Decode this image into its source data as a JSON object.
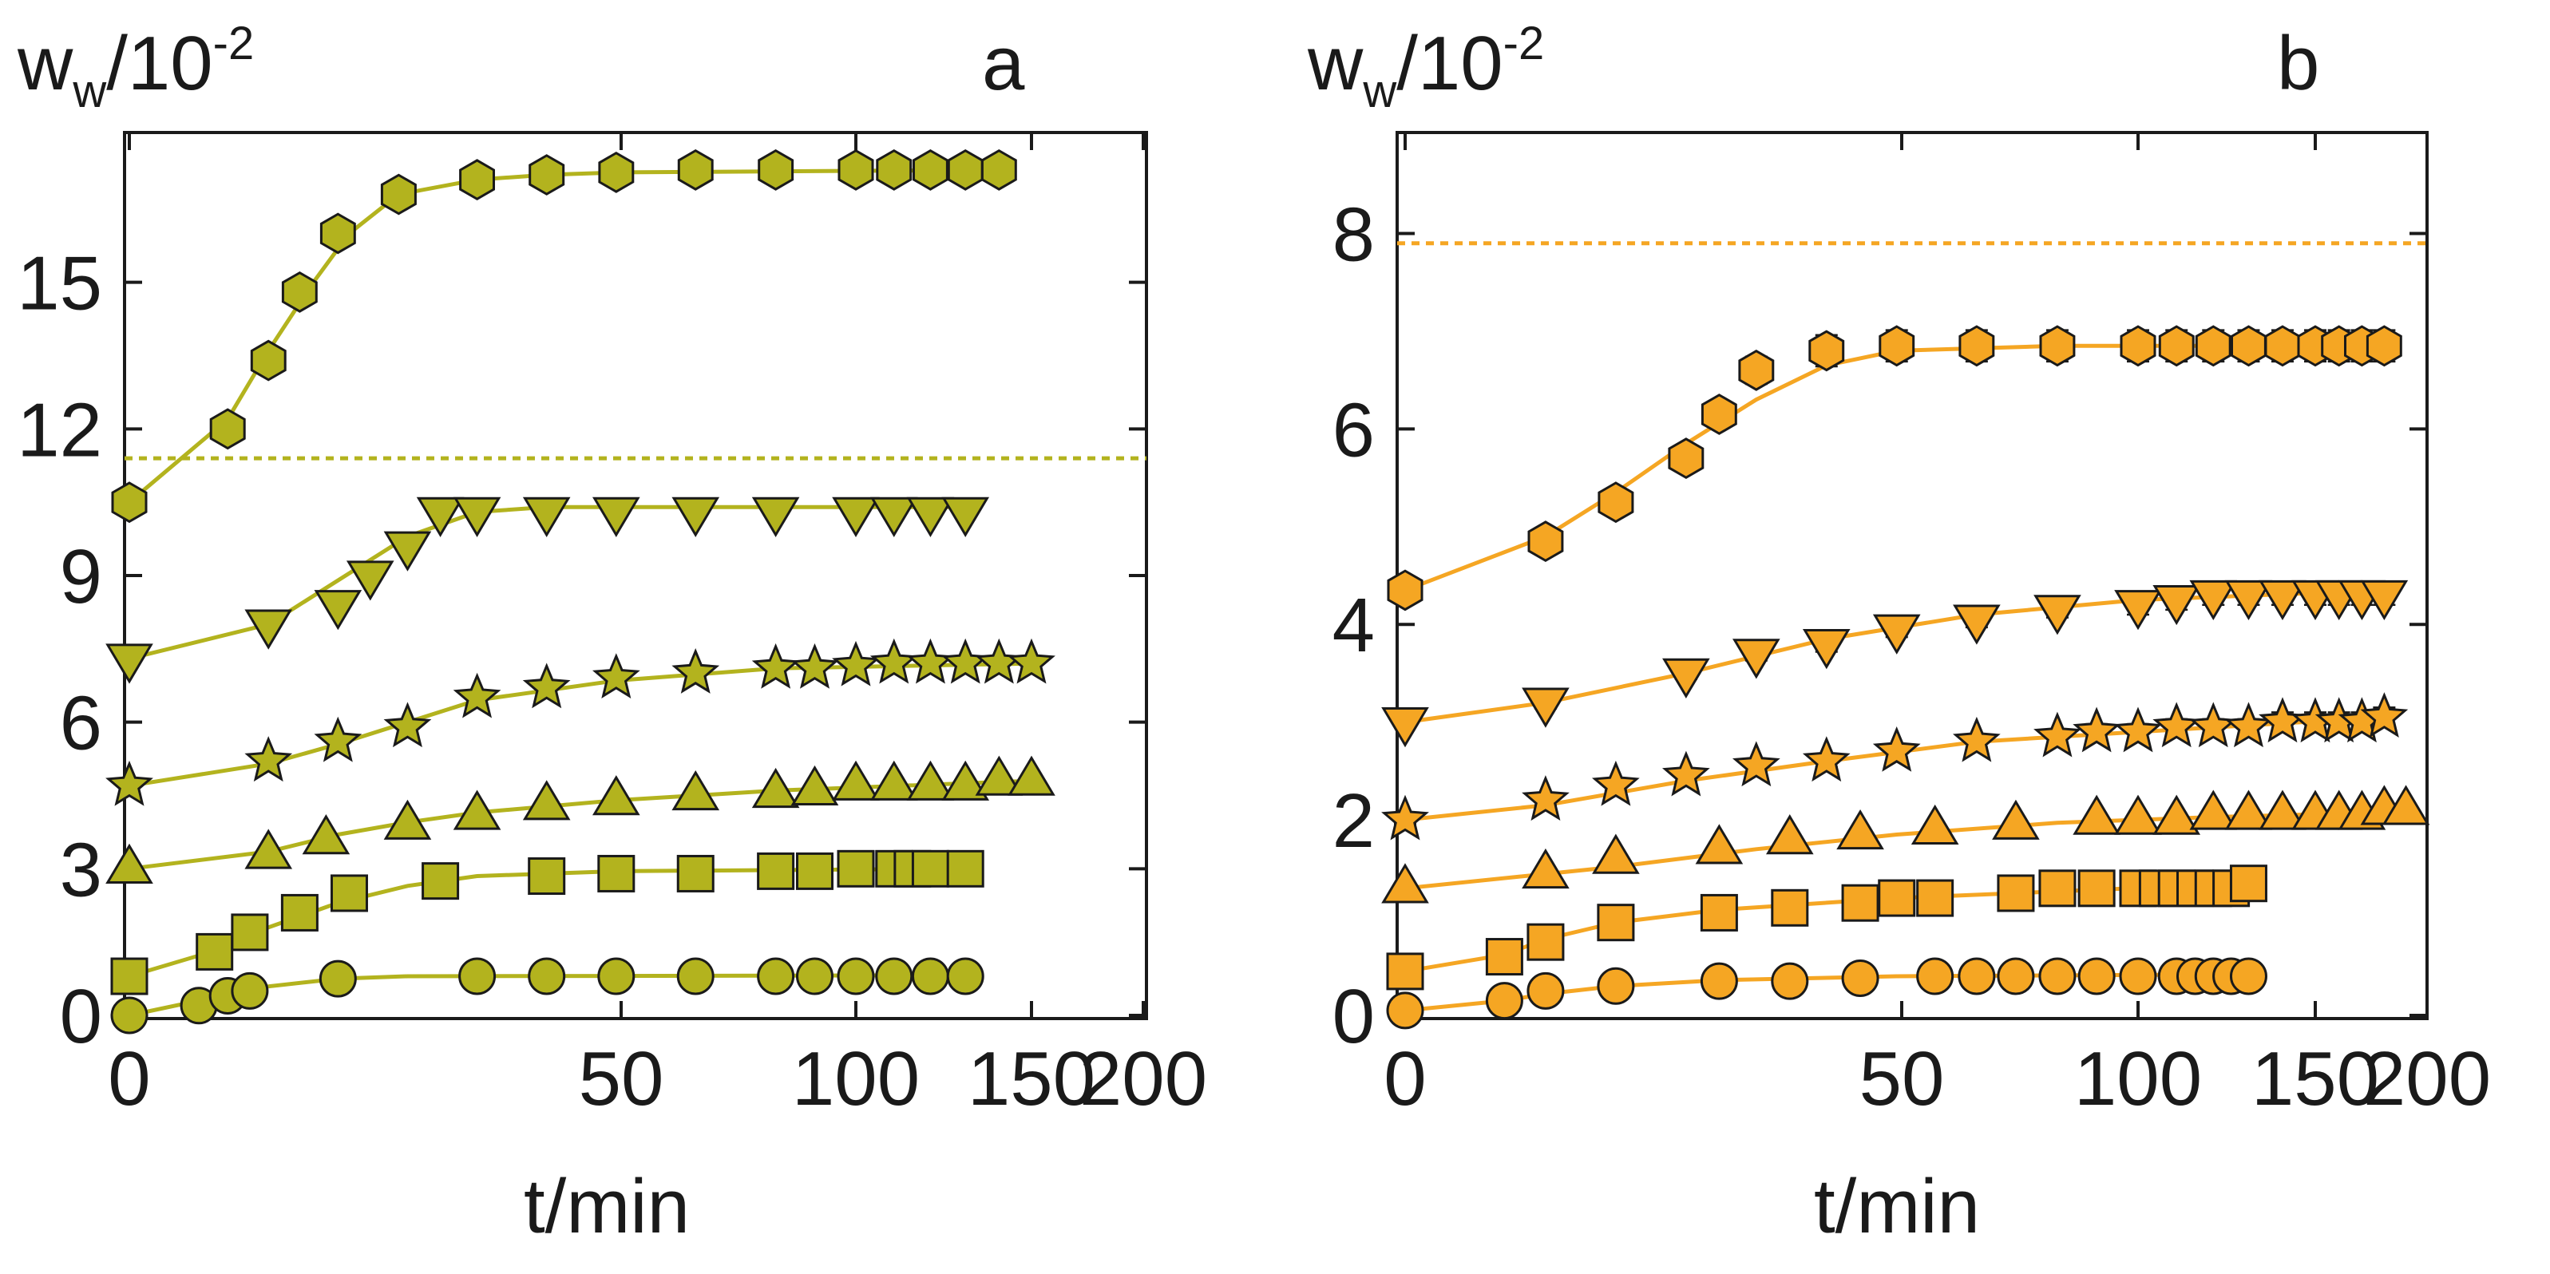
{
  "figure": {
    "panels": [
      "a",
      "b"
    ]
  },
  "chart_data": [
    {
      "panel": "a",
      "type": "scatter",
      "color": "#b3b31e",
      "title": "",
      "xlabel": "t/min",
      "ylabel_main": "w",
      "ylabel_sub": "w",
      "ylabel_tail": "/10",
      "ylabel_exp": "-2",
      "panel_label": "a",
      "x_axis_scale": "sqrt",
      "xlim": [
        0,
        200
      ],
      "ylim": [
        0,
        18
      ],
      "xticks": [
        0,
        50,
        100,
        150,
        200
      ],
      "yticks": [
        0,
        3,
        6,
        9,
        12,
        15
      ],
      "reference_line": 11.4,
      "error_bars": false,
      "series": [
        {
          "name": "hexagon",
          "marker": "hexagon",
          "x": [
            0,
            2,
            4,
            6,
            9,
            15,
            25,
            36,
            49,
            64,
            81,
            100,
            110,
            120,
            130,
            140
          ],
          "y": [
            10.5,
            12.0,
            13.4,
            14.8,
            16.0,
            16.8,
            17.1,
            17.2,
            17.25,
            17.3,
            17.3,
            17.3,
            17.3,
            17.3,
            17.3,
            17.3
          ],
          "fit_x": [
            0,
            2,
            4,
            7,
            10,
            15,
            25,
            36,
            50,
            140
          ],
          "fit_y": [
            10.5,
            12.2,
            13.6,
            15.0,
            16.0,
            16.8,
            17.1,
            17.2,
            17.25,
            17.3
          ]
        },
        {
          "name": "triangle-down",
          "marker": "triangle-down",
          "x": [
            0,
            4,
            9,
            12,
            16,
            20,
            25,
            36,
            49,
            64,
            81,
            100,
            110,
            120,
            130
          ],
          "y": [
            7.3,
            8.0,
            8.4,
            9.0,
            9.6,
            10.3,
            10.3,
            10.3,
            10.3,
            10.3,
            10.3,
            10.3,
            10.3,
            10.3,
            10.3
          ],
          "fit_x": [
            0,
            4,
            9,
            16,
            25,
            36,
            130
          ],
          "fit_y": [
            7.3,
            8.0,
            8.9,
            9.8,
            10.3,
            10.4,
            10.4
          ]
        },
        {
          "name": "star",
          "marker": "star",
          "x": [
            0,
            4,
            9,
            16,
            25,
            36,
            49,
            64,
            81,
            90,
            100,
            110,
            120,
            130,
            140,
            150
          ],
          "y": [
            4.7,
            5.2,
            5.6,
            5.9,
            6.5,
            6.7,
            6.9,
            7.0,
            7.1,
            7.1,
            7.15,
            7.2,
            7.2,
            7.2,
            7.2,
            7.2
          ],
          "fit_x": [
            0,
            4,
            9,
            16,
            25,
            49,
            81,
            150
          ],
          "fit_y": [
            4.7,
            5.15,
            5.55,
            6.0,
            6.45,
            6.85,
            7.1,
            7.2
          ]
        },
        {
          "name": "triangle-up",
          "marker": "triangle-up",
          "x": [
            0,
            4,
            8,
            16,
            25,
            36,
            49,
            64,
            81,
            90,
            100,
            110,
            120,
            130,
            140,
            150
          ],
          "y": [
            3.0,
            3.3,
            3.6,
            3.9,
            4.1,
            4.3,
            4.4,
            4.5,
            4.55,
            4.6,
            4.7,
            4.7,
            4.7,
            4.7,
            4.8,
            4.8
          ],
          "fit_x": [
            0,
            4,
            9,
            16,
            25,
            49,
            81,
            150
          ],
          "fit_y": [
            3.0,
            3.35,
            3.7,
            3.95,
            4.15,
            4.4,
            4.6,
            4.8
          ]
        },
        {
          "name": "square",
          "marker": "square",
          "x": [
            0,
            1.5,
            3,
            6,
            10,
            20,
            36,
            49,
            64,
            81,
            90,
            100,
            110,
            115,
            120,
            130
          ],
          "y": [
            0.8,
            1.3,
            1.7,
            2.1,
            2.5,
            2.75,
            2.85,
            2.9,
            2.9,
            2.95,
            2.95,
            3.0,
            3.0,
            3.0,
            3.0,
            3.0
          ],
          "fit_x": [
            0,
            2,
            4,
            9,
            16,
            25,
            49,
            130
          ],
          "fit_y": [
            0.8,
            1.4,
            1.8,
            2.3,
            2.65,
            2.85,
            2.95,
            3.0
          ]
        },
        {
          "name": "circle",
          "marker": "circle",
          "x": [
            0,
            1,
            2,
            3,
            9,
            25,
            36,
            49,
            64,
            81,
            90,
            100,
            110,
            120,
            130
          ],
          "y": [
            0.0,
            0.2,
            0.4,
            0.5,
            0.75,
            0.8,
            0.8,
            0.8,
            0.8,
            0.8,
            0.8,
            0.8,
            0.8,
            0.8,
            0.8
          ],
          "fit_x": [
            0,
            1,
            3,
            9,
            16,
            130
          ],
          "fit_y": [
            0.0,
            0.3,
            0.55,
            0.75,
            0.8,
            0.82
          ]
        }
      ]
    },
    {
      "panel": "b",
      "type": "scatter",
      "color": "#f5a623",
      "title": "",
      "xlabel": "t/min",
      "ylabel_main": "w",
      "ylabel_sub": "w",
      "ylabel_tail": "/10",
      "ylabel_exp": "-2",
      "panel_label": "b",
      "x_axis_scale": "sqrt",
      "xlim": [
        0,
        200
      ],
      "ylim": [
        0,
        9
      ],
      "xticks": [
        0,
        50,
        100,
        150,
        200
      ],
      "yticks": [
        0,
        2,
        4,
        6,
        8
      ],
      "reference_line": 7.9,
      "error_bars": true,
      "series": [
        {
          "name": "hexagon",
          "marker": "hexagon",
          "x": [
            0,
            4,
            9,
            16,
            20,
            25,
            36,
            49,
            64,
            81,
            100,
            110,
            120,
            130,
            140,
            150,
            160,
            170,
            180
          ],
          "y": [
            4.35,
            4.85,
            5.25,
            5.7,
            6.15,
            6.6,
            6.8,
            6.85,
            6.85,
            6.85,
            6.85,
            6.85,
            6.85,
            6.85,
            6.85,
            6.85,
            6.85,
            6.85,
            6.85
          ],
          "err": [
            0.1,
            0.12,
            0.12,
            0.13,
            0.13,
            0.14,
            0.16,
            0.16,
            0.16,
            0.16,
            0.16,
            0.16,
            0.16,
            0.16,
            0.16,
            0.16,
            0.16,
            0.16,
            0.16
          ],
          "fit_x": [
            0,
            4,
            9,
            16,
            25,
            36,
            49,
            81,
            180
          ],
          "fit_y": [
            4.35,
            4.9,
            5.35,
            5.85,
            6.3,
            6.65,
            6.8,
            6.85,
            6.85
          ]
        },
        {
          "name": "triangle-down",
          "marker": "triangle-down",
          "x": [
            0,
            4,
            16,
            25,
            36,
            49,
            64,
            81,
            100,
            110,
            120,
            130,
            140,
            150,
            160,
            170,
            180
          ],
          "y": [
            3.0,
            3.2,
            3.5,
            3.7,
            3.8,
            3.95,
            4.05,
            4.15,
            4.2,
            4.25,
            4.3,
            4.3,
            4.3,
            4.3,
            4.3,
            4.3,
            4.3
          ],
          "err": [
            0.05,
            0.06,
            0.06,
            0.07,
            0.08,
            0.08,
            0.08,
            0.08,
            0.1,
            0.1,
            0.1,
            0.1,
            0.1,
            0.1,
            0.1,
            0.1,
            0.1
          ],
          "fit_x": [
            0,
            4,
            16,
            36,
            64,
            100,
            180
          ],
          "fit_y": [
            3.0,
            3.2,
            3.5,
            3.85,
            4.1,
            4.25,
            4.35
          ]
        },
        {
          "name": "star",
          "marker": "star",
          "x": [
            0,
            4,
            9,
            16,
            25,
            36,
            49,
            64,
            81,
            90,
            100,
            110,
            120,
            130,
            140,
            150,
            160,
            170,
            180
          ],
          "y": [
            2.0,
            2.2,
            2.35,
            2.45,
            2.55,
            2.6,
            2.7,
            2.8,
            2.85,
            2.9,
            2.9,
            2.95,
            2.95,
            2.95,
            3.0,
            3.0,
            3.0,
            3.0,
            3.05
          ],
          "err": [
            0.04,
            0.05,
            0.05,
            0.06,
            0.06,
            0.06,
            0.06,
            0.06,
            0.08,
            0.08,
            0.08,
            0.08,
            0.08,
            0.08,
            0.1,
            0.1,
            0.1,
            0.1,
            0.1
          ],
          "fit_x": [
            0,
            4,
            16,
            36,
            64,
            100,
            180
          ],
          "fit_y": [
            2.0,
            2.15,
            2.4,
            2.6,
            2.8,
            2.9,
            3.05
          ]
        },
        {
          "name": "triangle-up",
          "marker": "triangle-up",
          "x": [
            0,
            4,
            9,
            20,
            30,
            42,
            56,
            72,
            90,
            100,
            110,
            120,
            130,
            140,
            150,
            160,
            170,
            180,
            190
          ],
          "y": [
            1.3,
            1.45,
            1.6,
            1.7,
            1.8,
            1.85,
            1.9,
            1.95,
            2.0,
            2.0,
            2.0,
            2.05,
            2.05,
            2.05,
            2.05,
            2.05,
            2.05,
            2.1,
            2.1
          ],
          "err": [
            0.03,
            0.03,
            0.03,
            0.03,
            0.03,
            0.03,
            0.03,
            0.03,
            0.04,
            0.04,
            0.04,
            0.04,
            0.04,
            0.04,
            0.04,
            0.04,
            0.04,
            0.04,
            0.04
          ],
          "fit_x": [
            0,
            9,
            25,
            49,
            81,
            121,
            190
          ],
          "fit_y": [
            1.3,
            1.52,
            1.7,
            1.85,
            1.97,
            2.03,
            2.08
          ]
        },
        {
          "name": "square",
          "marker": "square",
          "x": [
            0,
            2,
            4,
            9,
            20,
            30,
            42,
            49,
            56,
            72,
            81,
            90,
            100,
            105,
            110,
            115,
            120,
            125,
            130
          ],
          "y": [
            0.45,
            0.6,
            0.75,
            0.95,
            1.05,
            1.1,
            1.15,
            1.2,
            1.2,
            1.25,
            1.3,
            1.3,
            1.3,
            1.3,
            1.3,
            1.3,
            1.3,
            1.3,
            1.35
          ],
          "err": [
            0.02,
            0.02,
            0.02,
            0.02,
            0.02,
            0.02,
            0.02,
            0.02,
            0.02,
            0.02,
            0.02,
            0.02,
            0.02,
            0.02,
            0.02,
            0.02,
            0.02,
            0.02,
            0.02
          ],
          "fit_x": [
            0,
            2,
            4,
            9,
            20,
            49,
            130
          ],
          "fit_y": [
            0.45,
            0.62,
            0.78,
            0.95,
            1.08,
            1.2,
            1.35
          ]
        },
        {
          "name": "circle",
          "marker": "circle",
          "x": [
            0,
            2,
            4,
            9,
            20,
            30,
            42,
            56,
            64,
            72,
            81,
            90,
            100,
            110,
            115,
            120,
            125,
            130
          ],
          "y": [
            0.05,
            0.15,
            0.25,
            0.3,
            0.35,
            0.35,
            0.38,
            0.4,
            0.4,
            0.4,
            0.4,
            0.4,
            0.4,
            0.4,
            0.4,
            0.4,
            0.4,
            0.4
          ],
          "err": [
            0.01,
            0.01,
            0.01,
            0.01,
            0.01,
            0.01,
            0.01,
            0.01,
            0.01,
            0.01,
            0.01,
            0.01,
            0.01,
            0.01,
            0.01,
            0.01,
            0.01,
            0.01
          ],
          "fit_x": [
            0,
            2,
            4,
            9,
            20,
            49,
            130
          ],
          "fit_y": [
            0.05,
            0.15,
            0.22,
            0.3,
            0.36,
            0.4,
            0.42
          ]
        }
      ]
    }
  ]
}
